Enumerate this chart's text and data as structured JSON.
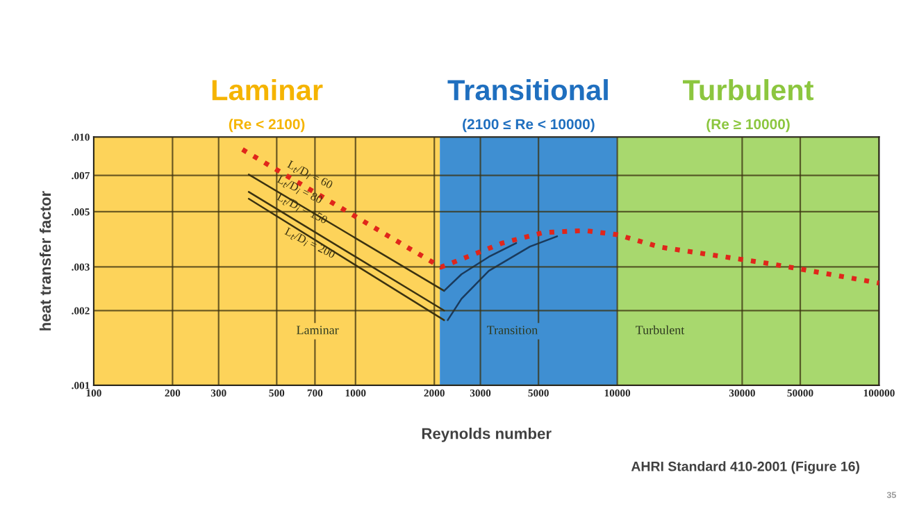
{
  "chart_data": {
    "type": "line",
    "xlabel": "Reynolds number",
    "ylabel": "heat transfer factor",
    "log": "xy",
    "grid": true,
    "xlim": [
      100,
      100000
    ],
    "ylim": [
      0.001,
      0.01
    ],
    "xticks": [
      100,
      200,
      300,
      500,
      700,
      1000,
      2000,
      3000,
      5000,
      10000,
      30000,
      50000,
      100000
    ],
    "yticks": [
      {
        "value": 0.001,
        "label": ".001"
      },
      {
        "value": 0.002,
        "label": ".002"
      },
      {
        "value": 0.003,
        "label": ".003"
      },
      {
        "value": 0.005,
        "label": ".005"
      },
      {
        "value": 0.007,
        "label": ".007"
      },
      {
        "value": 0.01,
        "label": ".010"
      }
    ],
    "bands": [
      {
        "axis": "x",
        "from": 100,
        "to": 2100,
        "label": "Laminar\n(Re < 2100)",
        "color": "#fdd35a"
      },
      {
        "axis": "x",
        "from": 2100,
        "to": 10000,
        "label": "Transitional\n(2100 ≤ Re < 10000)",
        "color": "#3f8fd2"
      },
      {
        "axis": "x",
        "from": 10000,
        "to": 100000,
        "label": "Turbulent\n(Re ≥ 10000)",
        "color": "#a8d86e"
      }
    ],
    "series": [
      {
        "color": "#3b3210",
        "line_style": "solid",
        "x": [
          391,
          2180
        ],
        "values": [
          0.00706,
          0.0024
        ]
      },
      {
        "color": "#3b3210",
        "line_style": "solid",
        "x": [
          391,
          2180
        ],
        "values": [
          0.00601,
          0.002
        ]
      },
      {
        "color": "#3b3210",
        "line_style": "solid",
        "x": [
          391,
          2180
        ],
        "values": [
          0.00564,
          0.00183
        ]
      },
      {
        "color": "#1a3a5c",
        "line_style": "solid",
        "x": [
          2180,
          2540,
          3230,
          4110
        ],
        "values": [
          0.0024,
          0.0028,
          0.00329,
          0.00374
        ]
      },
      {
        "color": "#1a3a5c",
        "line_style": "solid",
        "x": [
          2250,
          2540,
          3230,
          4640,
          5890
        ],
        "values": [
          0.00183,
          0.00223,
          0.00289,
          0.00362,
          0.00398
        ]
      },
      {
        "color": "#e0261b",
        "line_style": "dotted",
        "x": [
          370,
          2120,
          3640,
          5220,
          7500,
          10000,
          14600,
          38900,
          100000
        ],
        "values": [
          0.0089,
          0.00299,
          0.00374,
          0.00412,
          0.0042,
          0.00404,
          0.0036,
          0.00308,
          0.00258
        ]
      }
    ],
    "annotations": [
      "L$_{t}$/D$_{i}$ = 60",
      "L$_{t}$/D$_{i}$ = 80",
      "L$_{t}$/D$_{i}$ = 150",
      "L$_{t}$/D$_{i}$ = 200",
      "Laminar",
      "Transition",
      "Turbulent",
      "AHRI Standard 410-2001 (Figure 16)",
      "35"
    ]
  }
}
